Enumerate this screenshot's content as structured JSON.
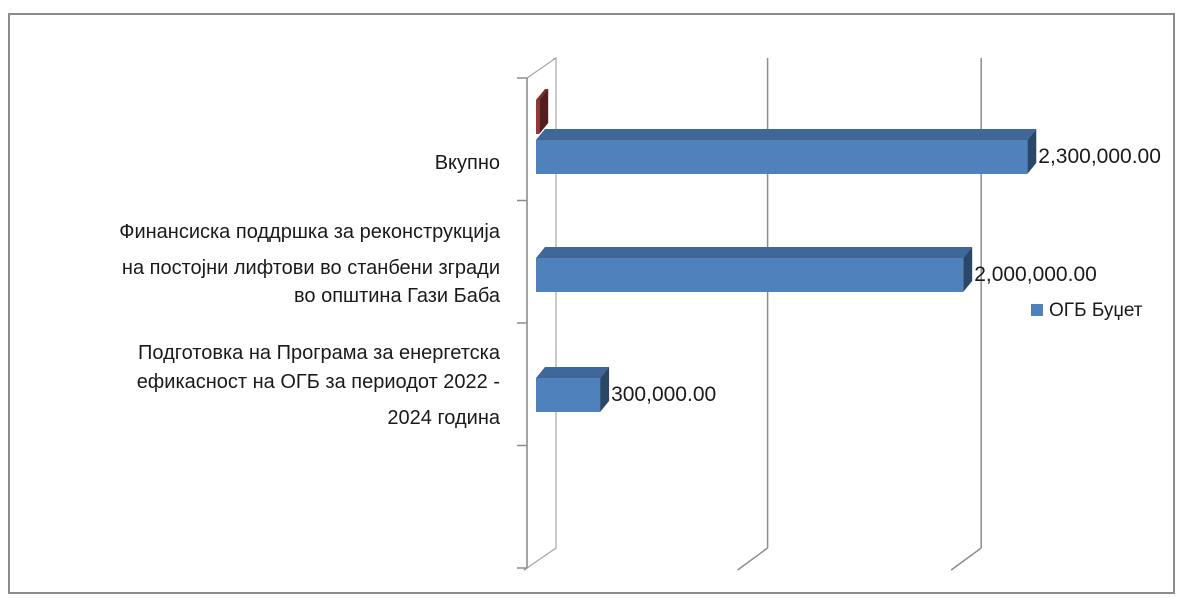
{
  "chart_data": {
    "type": "bar",
    "orientation": "horizontal",
    "style": "3d",
    "categories": [
      "Вкупно",
      "Финансиска поддршка за реконструкција на постојни лифтови во станбени згради во општина Гази Баба",
      "Подготовка на Програма за енергетска ефикасност на ОГБ за периодот 2022 - 2024 година"
    ],
    "category_lines": [
      [
        "Вкупно"
      ],
      [
        "Финансиска поддршка за реконструкција",
        "на постојни лифтови во станбени згради",
        "во општина Гази Баба"
      ],
      [
        "Подготовка на Програма за енергетска",
        "ефикасност на ОГБ за периодот 2022 -",
        "2024 година"
      ]
    ],
    "series": [
      {
        "name": "ОГБ Буџет",
        "color": "#4f81bd",
        "values": [
          2300000,
          2000000,
          300000
        ],
        "data_labels": [
          "2,300,000.00",
          "2,000,000.00",
          "300,000.00"
        ]
      },
      {
        "name": "",
        "color": "#953735",
        "values": [
          15000,
          null,
          null
        ]
      }
    ],
    "xlim": [
      0,
      2500000
    ],
    "grid": true,
    "legend_position": "right"
  }
}
